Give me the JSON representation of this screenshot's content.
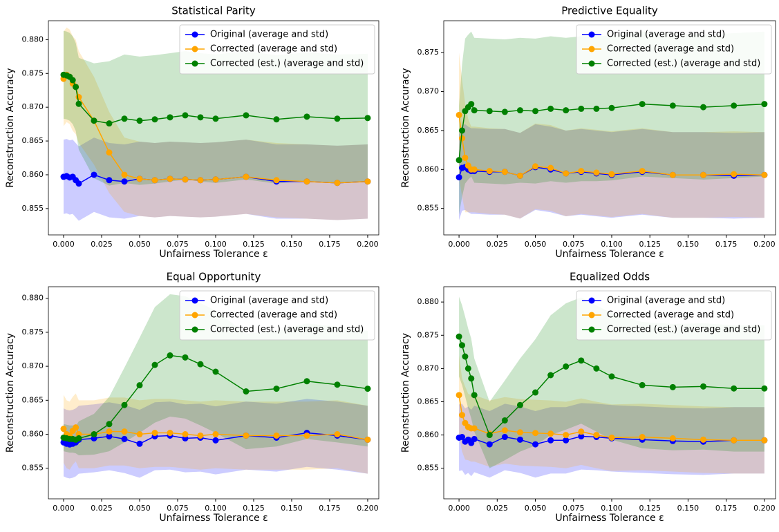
{
  "chart_data": [
    {
      "type": "line",
      "title": "Statistical Parity",
      "xlabel": "Unfairness Tolerance ε",
      "ylabel": "Reconstruction Accuracy",
      "legend": "upper right",
      "x": [
        0,
        0.002,
        0.004,
        0.006,
        0.008,
        0.01,
        0.02,
        0.03,
        0.04,
        0.05,
        0.06,
        0.07,
        0.08,
        0.09,
        0.1,
        0.12,
        0.14,
        0.16,
        0.18,
        0.2
      ],
      "xlim": [
        -0.01,
        0.2073
      ],
      "xticks": [
        {
          "value": 0,
          "label": "0.000"
        },
        {
          "value": 0.025,
          "label": "0.025"
        },
        {
          "value": 0.05,
          "label": "0.050"
        },
        {
          "value": 0.075,
          "label": "0.075"
        },
        {
          "value": 0.1,
          "label": "0.100"
        },
        {
          "value": 0.125,
          "label": "0.125"
        },
        {
          "value": 0.15,
          "label": "0.150"
        },
        {
          "value": 0.175,
          "label": "0.175"
        },
        {
          "value": 0.2,
          "label": "0.200"
        }
      ],
      "ylim": [
        0.8511,
        0.8828
      ],
      "yticks": [
        0.855,
        {
          "value": 0.86,
          "label": "0.860"
        },
        0.865,
        {
          "value": 0.87,
          "label": "0.870"
        },
        0.875,
        {
          "value": 0.88,
          "label": "0.880"
        }
      ],
      "series": [
        {
          "name": "Original (average and std)",
          "color": "#0000ff",
          "values": [
            0.8597,
            0.8598,
            0.8596,
            0.8597,
            0.8592,
            0.8587,
            0.86,
            0.8592,
            0.859,
            0.8594,
            0.8592,
            0.8594,
            0.8593,
            0.8592,
            0.8593,
            0.8597,
            0.859,
            0.859,
            0.8588,
            0.859
          ],
          "std": [
            0.0055,
            0.0055,
            0.0055,
            0.0055,
            0.0055,
            0.0055,
            0.0055,
            0.0055,
            0.0055,
            0.0055,
            0.0055,
            0.0055,
            0.0055,
            0.0055,
            0.0055,
            0.0055,
            0.0055,
            0.0055,
            0.0055,
            0.0055
          ]
        },
        {
          "name": "Corrected (average and std)",
          "color": "#ffa500",
          "values": [
            0.8742,
            0.8748,
            0.8745,
            0.8735,
            0.873,
            0.8715,
            0.868,
            0.8633,
            0.86,
            0.8594,
            0.8592,
            0.8594,
            0.8593,
            0.8592,
            0.8593,
            0.8597,
            0.8592,
            0.859,
            0.8588,
            0.859
          ],
          "std": [
            0.007,
            0.007,
            0.007,
            0.007,
            0.007,
            0.0068,
            0.0065,
            0.006,
            0.0055,
            0.0055,
            0.0055,
            0.0055,
            0.0055,
            0.0055,
            0.0055,
            0.0055,
            0.0055,
            0.0055,
            0.0055,
            0.0055
          ]
        },
        {
          "name": "Corrected (est.) (average and std)",
          "color": "#008000",
          "values": [
            0.8748,
            0.8747,
            0.8745,
            0.874,
            0.873,
            0.8705,
            0.868,
            0.8676,
            0.8683,
            0.868,
            0.8682,
            0.8685,
            0.8688,
            0.8685,
            0.8683,
            0.8688,
            0.8682,
            0.8686,
            0.8683,
            0.8684
          ],
          "std": [
            0.0065,
            0.0065,
            0.0065,
            0.0065,
            0.0065,
            0.0068,
            0.0085,
            0.0092,
            0.0095,
            0.0095,
            0.0095,
            0.0095,
            0.0095,
            0.0095,
            0.0095,
            0.0095,
            0.0095,
            0.0095,
            0.0095,
            0.0095
          ]
        }
      ]
    },
    {
      "type": "line",
      "title": "Predictive Equality",
      "xlabel": "Unfairness Tolerance ε",
      "ylabel": "Reconstruction Accuracy",
      "legend": "upper right",
      "x": [
        0,
        0.002,
        0.004,
        0.006,
        0.008,
        0.01,
        0.02,
        0.03,
        0.04,
        0.05,
        0.06,
        0.07,
        0.08,
        0.09,
        0.1,
        0.12,
        0.14,
        0.16,
        0.18,
        0.2
      ],
      "xlim": [
        -0.01,
        0.2073
      ],
      "xticks": [
        {
          "value": 0,
          "label": "0.000"
        },
        {
          "value": 0.025,
          "label": "0.025"
        },
        {
          "value": 0.05,
          "label": "0.050"
        },
        {
          "value": 0.075,
          "label": "0.075"
        },
        {
          "value": 0.1,
          "label": "0.100"
        },
        {
          "value": 0.125,
          "label": "0.125"
        },
        {
          "value": 0.15,
          "label": "0.150"
        },
        {
          "value": 0.175,
          "label": "0.175"
        },
        {
          "value": 0.2,
          "label": "0.200"
        }
      ],
      "ylim": [
        0.8516,
        0.8791
      ],
      "yticks": [
        0.855,
        {
          "value": 0.86,
          "label": "0.860"
        },
        0.865,
        {
          "value": 0.87,
          "label": "0.870"
        },
        0.875
      ],
      "series": [
        {
          "name": "Original (average and std)",
          "color": "#0000ff",
          "values": [
            0.859,
            0.8602,
            0.8603,
            0.86,
            0.8598,
            0.8598,
            0.8597,
            0.8597,
            0.8592,
            0.8603,
            0.86,
            0.8595,
            0.8597,
            0.8595,
            0.8593,
            0.8597,
            0.8593,
            0.8593,
            0.8592,
            0.8593
          ],
          "std": [
            0.0055,
            0.0055,
            0.0055,
            0.0055,
            0.0055,
            0.0055,
            0.0055,
            0.0055,
            0.0055,
            0.0055,
            0.0055,
            0.0055,
            0.0055,
            0.0055,
            0.0055,
            0.0055,
            0.0055,
            0.0055,
            0.0055,
            0.0055
          ]
        },
        {
          "name": "Corrected (average and std)",
          "color": "#ffa500",
          "values": [
            0.867,
            0.864,
            0.8615,
            0.8605,
            0.86,
            0.86,
            0.8598,
            0.8597,
            0.8592,
            0.8604,
            0.8602,
            0.8595,
            0.8598,
            0.8596,
            0.8594,
            0.8598,
            0.8593,
            0.8593,
            0.8594,
            0.8593
          ],
          "std": [
            0.008,
            0.0075,
            0.007,
            0.006,
            0.0055,
            0.0055,
            0.0055,
            0.0055,
            0.0055,
            0.0055,
            0.0055,
            0.0055,
            0.0055,
            0.0055,
            0.0055,
            0.0055,
            0.0055,
            0.0055,
            0.0055,
            0.0055
          ]
        },
        {
          "name": "Corrected (est.) (average and std)",
          "color": "#008000",
          "values": [
            0.8612,
            0.865,
            0.8675,
            0.868,
            0.8684,
            0.8676,
            0.8675,
            0.8674,
            0.8676,
            0.8675,
            0.8678,
            0.8676,
            0.8678,
            0.8678,
            0.8679,
            0.8684,
            0.8682,
            0.868,
            0.8682,
            0.8684
          ],
          "std": [
            0.007,
            0.0085,
            0.0093,
            0.0093,
            0.0093,
            0.0093,
            0.0093,
            0.0093,
            0.0093,
            0.0093,
            0.0093,
            0.0093,
            0.0093,
            0.0093,
            0.0093,
            0.0093,
            0.0093,
            0.0093,
            0.0093,
            0.0093
          ]
        }
      ]
    },
    {
      "type": "line",
      "title": "Equal Opportunity",
      "xlabel": "Unfairness Tolerance ε",
      "ylabel": "Reconstruction Accuracy",
      "legend": "upper right",
      "x": [
        0,
        0.002,
        0.004,
        0.006,
        0.008,
        0.01,
        0.02,
        0.03,
        0.04,
        0.05,
        0.06,
        0.07,
        0.08,
        0.09,
        0.1,
        0.12,
        0.14,
        0.16,
        0.18,
        0.2
      ],
      "xlim": [
        -0.01,
        0.2073
      ],
      "xticks": [
        {
          "value": 0,
          "label": "0.000"
        },
        {
          "value": 0.025,
          "label": "0.025"
        },
        {
          "value": 0.05,
          "label": "0.050"
        },
        {
          "value": 0.075,
          "label": "0.075"
        },
        {
          "value": 0.1,
          "label": "0.100"
        },
        {
          "value": 0.125,
          "label": "0.125"
        },
        {
          "value": 0.15,
          "label": "0.150"
        },
        {
          "value": 0.175,
          "label": "0.175"
        },
        {
          "value": 0.2,
          "label": "0.200"
        }
      ],
      "ylim": [
        0.8505,
        0.8817
      ],
      "yticks": [
        0.855,
        {
          "value": 0.86,
          "label": "0.860"
        },
        0.865,
        {
          "value": 0.87,
          "label": "0.870"
        },
        0.875,
        {
          "value": 0.88,
          "label": "0.880"
        }
      ],
      "series": [
        {
          "name": "Original (average and std)",
          "color": "#0000ff",
          "values": [
            0.8588,
            0.8586,
            0.8585,
            0.8586,
            0.8588,
            0.8592,
            0.8594,
            0.8597,
            0.8593,
            0.8586,
            0.8597,
            0.8598,
            0.8594,
            0.8595,
            0.8591,
            0.8598,
            0.8595,
            0.8602,
            0.8598,
            0.8592
          ],
          "std": [
            0.005,
            0.005,
            0.005,
            0.005,
            0.005,
            0.005,
            0.005,
            0.005,
            0.005,
            0.005,
            0.005,
            0.005,
            0.005,
            0.005,
            0.005,
            0.005,
            0.005,
            0.005,
            0.005,
            0.005
          ]
        },
        {
          "name": "Corrected (average and std)",
          "color": "#ffa500",
          "values": [
            0.8608,
            0.86,
            0.8598,
            0.8605,
            0.861,
            0.86,
            0.86,
            0.8604,
            0.8604,
            0.86,
            0.8602,
            0.8602,
            0.86,
            0.8598,
            0.86,
            0.8598,
            0.8598,
            0.8598,
            0.86,
            0.8592
          ],
          "std": [
            0.005,
            0.005,
            0.005,
            0.005,
            0.005,
            0.005,
            0.005,
            0.005,
            0.005,
            0.005,
            0.005,
            0.005,
            0.005,
            0.005,
            0.005,
            0.005,
            0.005,
            0.005,
            0.005,
            0.005
          ]
        },
        {
          "name": "Corrected (est.) (average and std)",
          "color": "#008000",
          "values": [
            0.8595,
            0.8594,
            0.8593,
            0.8593,
            0.8592,
            0.8594,
            0.86,
            0.8615,
            0.8643,
            0.8672,
            0.8702,
            0.8716,
            0.8713,
            0.8703,
            0.8692,
            0.8663,
            0.8667,
            0.8678,
            0.8673,
            0.8667
          ],
          "std": [
            0.002,
            0.002,
            0.002,
            0.002,
            0.002,
            0.0025,
            0.003,
            0.004,
            0.0055,
            0.007,
            0.0085,
            0.009,
            0.009,
            0.009,
            0.009,
            0.0085,
            0.0085,
            0.0085,
            0.0085,
            0.0085
          ]
        }
      ]
    },
    {
      "type": "line",
      "title": "Equalized Odds",
      "xlabel": "Unfairness Tolerance ε",
      "ylabel": "Reconstruction Accuracy",
      "legend": "upper right",
      "x": [
        0,
        0.002,
        0.004,
        0.006,
        0.008,
        0.01,
        0.02,
        0.03,
        0.04,
        0.05,
        0.06,
        0.07,
        0.08,
        0.09,
        0.1,
        0.12,
        0.14,
        0.16,
        0.18,
        0.2
      ],
      "xlim": [
        -0.01,
        0.2073
      ],
      "xticks": [
        {
          "value": 0,
          "label": "0.000"
        },
        {
          "value": 0.025,
          "label": "0.025"
        },
        {
          "value": 0.05,
          "label": "0.050"
        },
        {
          "value": 0.075,
          "label": "0.075"
        },
        {
          "value": 0.1,
          "label": "0.100"
        },
        {
          "value": 0.125,
          "label": "0.125"
        },
        {
          "value": 0.15,
          "label": "0.150"
        },
        {
          "value": 0.175,
          "label": "0.175"
        },
        {
          "value": 0.2,
          "label": "0.200"
        }
      ],
      "ylim": [
        0.8504,
        0.8823
      ],
      "yticks": [
        0.855,
        {
          "value": 0.86,
          "label": "0.860"
        },
        0.865,
        {
          "value": 0.87,
          "label": "0.870"
        },
        0.875,
        {
          "value": 0.88,
          "label": "0.880"
        }
      ],
      "series": [
        {
          "name": "Original (average and std)",
          "color": "#0000ff",
          "values": [
            0.8596,
            0.8597,
            0.859,
            0.8593,
            0.8588,
            0.8594,
            0.8586,
            0.8597,
            0.8593,
            0.8586,
            0.8592,
            0.8592,
            0.8598,
            0.8597,
            0.8595,
            0.8593,
            0.8591,
            0.859,
            0.8592,
            0.8592
          ],
          "std": [
            0.005,
            0.005,
            0.005,
            0.005,
            0.005,
            0.005,
            0.005,
            0.005,
            0.005,
            0.005,
            0.005,
            0.005,
            0.005,
            0.005,
            0.005,
            0.005,
            0.005,
            0.005,
            0.005,
            0.005
          ]
        },
        {
          "name": "Corrected (average and std)",
          "color": "#ffa500",
          "values": [
            0.866,
            0.863,
            0.8618,
            0.8612,
            0.861,
            0.861,
            0.8602,
            0.8607,
            0.8604,
            0.8603,
            0.8602,
            0.86,
            0.8605,
            0.86,
            0.8596,
            0.8597,
            0.8595,
            0.8593,
            0.8592,
            0.8592
          ],
          "std": [
            0.006,
            0.0055,
            0.0055,
            0.005,
            0.005,
            0.005,
            0.005,
            0.005,
            0.005,
            0.005,
            0.005,
            0.005,
            0.005,
            0.005,
            0.005,
            0.005,
            0.005,
            0.005,
            0.005,
            0.005
          ]
        },
        {
          "name": "Corrected (est.) (average and std)",
          "color": "#008000",
          "values": [
            0.8748,
            0.8735,
            0.8718,
            0.87,
            0.8685,
            0.866,
            0.86,
            0.8622,
            0.8645,
            0.8664,
            0.869,
            0.8703,
            0.8712,
            0.87,
            0.8688,
            0.8675,
            0.8672,
            0.8673,
            0.867,
            0.867
          ],
          "std": [
            0.006,
            0.006,
            0.006,
            0.006,
            0.006,
            0.0055,
            0.005,
            0.006,
            0.007,
            0.008,
            0.009,
            0.0095,
            0.0095,
            0.0095,
            0.0095,
            0.0095,
            0.0095,
            0.0095,
            0.0095,
            0.0095
          ]
        }
      ]
    }
  ]
}
